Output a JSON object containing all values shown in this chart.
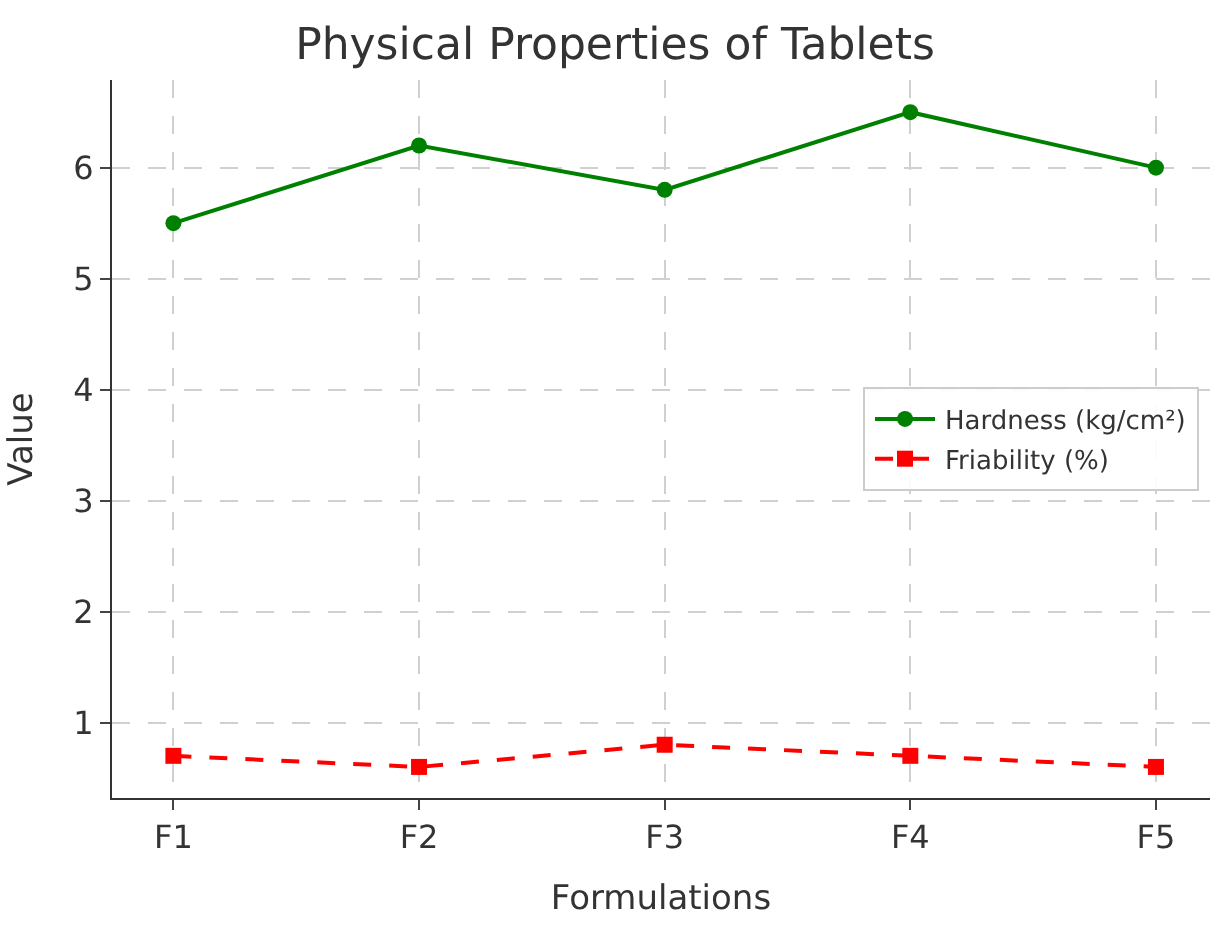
{
  "chart_data": {
    "type": "line",
    "title": "Physical Properties of Tablets",
    "xlabel": "Formulations",
    "ylabel": "Value",
    "categories": [
      "F1",
      "F2",
      "F3",
      "F4",
      "F5"
    ],
    "series": [
      {
        "name": "Hardness (kg/cm²)",
        "color": "#008000",
        "values": [
          5.5,
          6.2,
          5.8,
          6.5,
          6.0
        ],
        "marker": "circle",
        "line_style": "solid"
      },
      {
        "name": "Friability (%)",
        "color": "#ff0000",
        "values": [
          0.7,
          0.6,
          0.8,
          0.7,
          0.6
        ],
        "marker": "square",
        "line_style": "dashed"
      }
    ],
    "ylim": [
      0.32,
      6.79
    ],
    "yticks": [
      1,
      2,
      3,
      4,
      5,
      6
    ],
    "grid": true,
    "legend": "right"
  }
}
